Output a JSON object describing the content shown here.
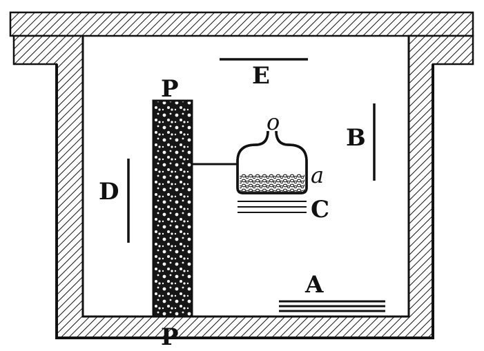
{
  "colors": {
    "ink": "#111111",
    "paper": "#ffffff"
  },
  "diagram": {
    "labels": {
      "top_plate": "E",
      "right_plate": "B",
      "left_plate": "D",
      "lower_plate": "C",
      "floor_plate": "A",
      "pillar_top": "P",
      "pillar_bottom": "P",
      "vessel_opening": "o",
      "vessel_contents": "a"
    }
  }
}
